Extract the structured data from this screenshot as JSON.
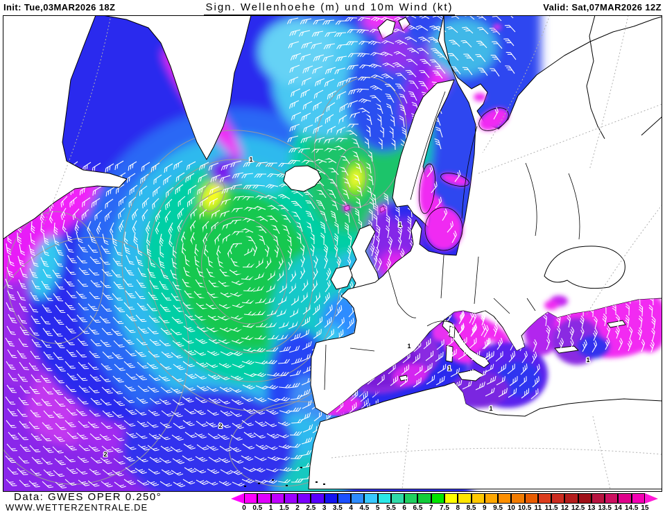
{
  "header": {
    "init": "Init: Tue,03MAR2026 18Z",
    "title": "Sign. Wellenhoehe (m) und 10m Wind (kt)",
    "valid": "Valid: Sat,07MAR2026 12Z"
  },
  "footer": {
    "source": "Data: GWES OPER 0.250°",
    "website": "WWW.WETTERZENTRALE.DE"
  },
  "legend": {
    "ticks": [
      "0",
      "0.5",
      "1",
      "1.5",
      "2",
      "2.5",
      "3",
      "3.5",
      "4",
      "4.5",
      "5",
      "5.5",
      "6",
      "6.5",
      "7",
      "7.5",
      "8",
      "8.5",
      "9",
      "9.5",
      "10",
      "10.5",
      "11",
      "11.5",
      "12",
      "12.5",
      "13",
      "13.5",
      "14",
      "14.5",
      "15"
    ],
    "colors": [
      "#ff00ff",
      "#e000ff",
      "#c000ff",
      "#9c00ff",
      "#7c00ff",
      "#5800ff",
      "#1414f0",
      "#1c50ff",
      "#2e8cff",
      "#38c8ff",
      "#2ae8e8",
      "#30d9a8",
      "#20d060",
      "#12cc3a",
      "#00e400",
      "#ffff00",
      "#ffe600",
      "#ffc800",
      "#ffa800",
      "#ff9000",
      "#f27c00",
      "#e85c00",
      "#dc3c1c",
      "#cc2c20",
      "#b41c1c",
      "#a01018",
      "#b81440",
      "#cc1060",
      "#e0008c",
      "#f400b4"
    ],
    "left_arrow_color": "#ff00ff",
    "right_arrow_color": "#ff1ad6"
  },
  "map": {
    "contour_labels": [
      "1",
      "2"
    ]
  }
}
